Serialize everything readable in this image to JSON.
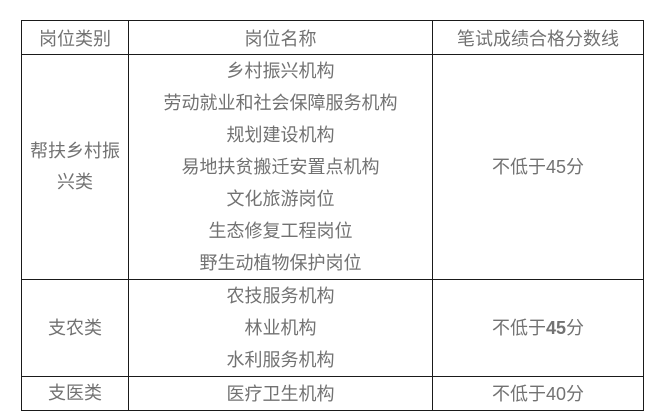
{
  "page": {
    "background_color": "#ffffff",
    "text_color": "#727272",
    "border_color": "#1a1a1a"
  },
  "table": {
    "headers": [
      "岗位类别",
      "岗位名称",
      "笔试成绩合格分数线"
    ],
    "rows": [
      {
        "category": "帮扶乡村振兴类",
        "positions": [
          "乡村振兴机构",
          "劳动就业和社会保障服务机构",
          "规划建设机构",
          "易地扶贫搬迁安置点机构",
          "文化旅游岗位",
          "生态修复工程岗位",
          "野生动植物保护岗位"
        ],
        "score_prefix": "不低于",
        "score_value": "45",
        "score_suffix": "分"
      },
      {
        "category": "支农类",
        "positions": [
          "农技服务机构",
          "林业机构",
          "水利服务机构"
        ],
        "score_prefix": "不低于",
        "score_value": "45",
        "score_suffix": "分"
      },
      {
        "category": "支医类",
        "positions": [
          "医疗卫生机构"
        ],
        "score_prefix": "不低于",
        "score_value": "40",
        "score_suffix": "分"
      }
    ]
  }
}
